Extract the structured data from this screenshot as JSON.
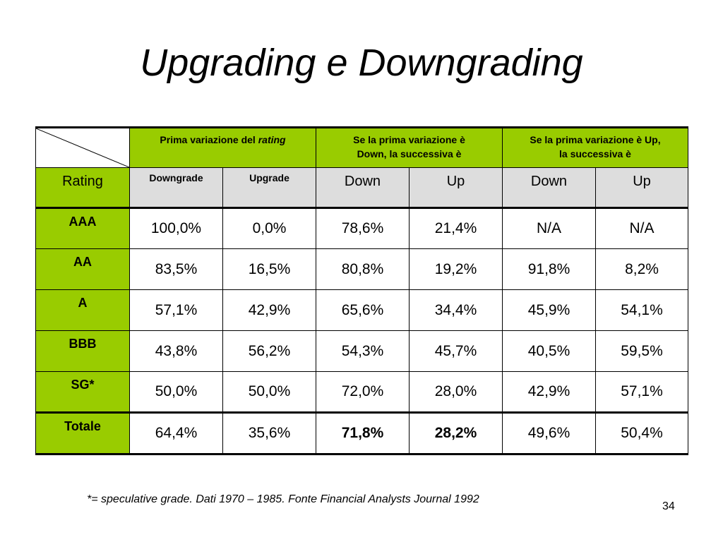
{
  "title": "Upgrading e Downgrading",
  "header": {
    "group1_prefix": "Prima variazione del ",
    "group1_italic": "rating",
    "group2_line1": "Se la prima variazione è",
    "group2_line2": "Down, la successiva è",
    "group3_line1": "Se la prima variazione è Up,",
    "group3_line2": "la successiva è"
  },
  "subheader": {
    "rating": "Rating",
    "cols": [
      "Downgrade",
      "Upgrade",
      "Down",
      "Up",
      "Down",
      "Up"
    ]
  },
  "rows": [
    {
      "label": "AAA",
      "values": [
        "100,0%",
        "0,0%",
        "78,6%",
        "21,4%",
        "N/A",
        "N/A"
      ]
    },
    {
      "label": "AA",
      "values": [
        "83,5%",
        "16,5%",
        "80,8%",
        "19,2%",
        "91,8%",
        "8,2%"
      ]
    },
    {
      "label": "A",
      "values": [
        "57,1%",
        "42,9%",
        "65,6%",
        "34,4%",
        "45,9%",
        "54,1%"
      ]
    },
    {
      "label": "BBB",
      "values": [
        "43,8%",
        "56,2%",
        "54,3%",
        "45,7%",
        "40,5%",
        "59,5%"
      ]
    },
    {
      "label": "SG*",
      "values": [
        "50,0%",
        "50,0%",
        "72,0%",
        "28,0%",
        "42,9%",
        "57,1%"
      ]
    },
    {
      "label": "Totale",
      "values": [
        "64,4%",
        "35,6%",
        "71,8%",
        "28,2%",
        "49,6%",
        "50,4%"
      ]
    }
  ],
  "footnote": "*= speculative grade. Dati 1970 – 1985. Fonte Financial Analysts Journal 1992",
  "page_number": "34",
  "colors": {
    "header_green": "#99cc00",
    "subheader_gray": "#dddddd"
  }
}
